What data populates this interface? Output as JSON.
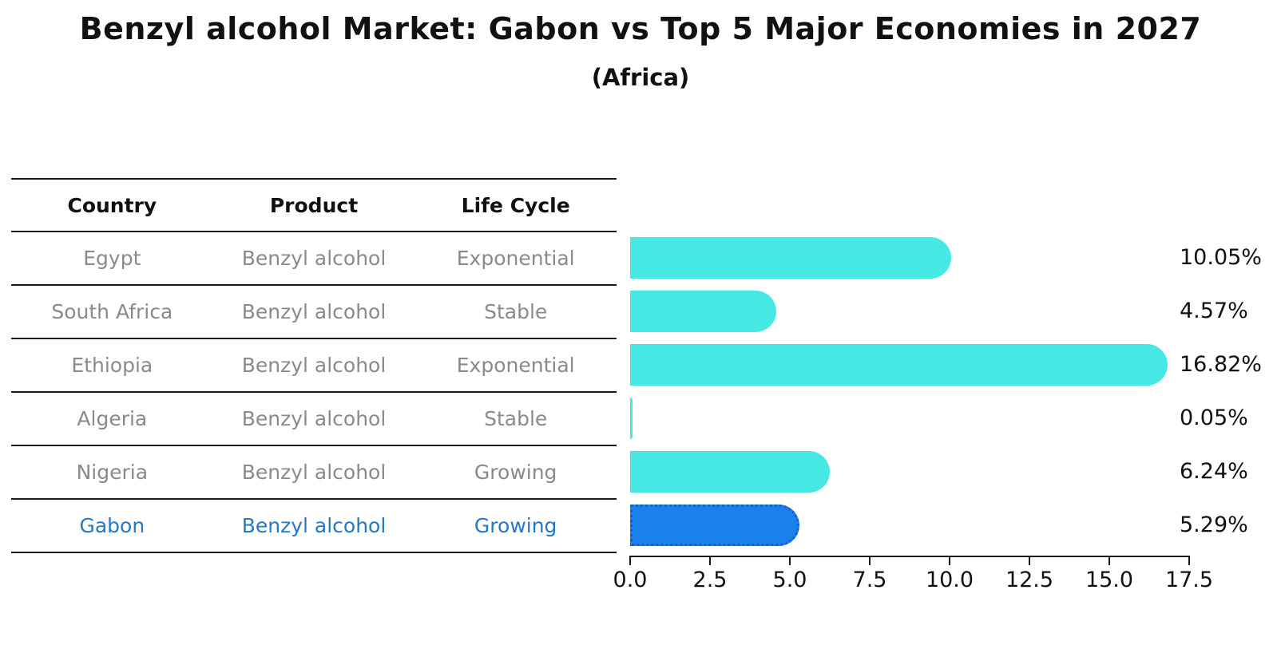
{
  "title": "Benzyl alcohol Market: Gabon vs Top 5 Major Economies in 2027",
  "subtitle": "(Africa)",
  "table": {
    "headers": [
      "Country",
      "Product",
      "Life Cycle"
    ],
    "rows": [
      {
        "country": "Egypt",
        "product": "Benzyl alcohol",
        "life_cycle": "Exponential",
        "highlight": false
      },
      {
        "country": "South Africa",
        "product": "Benzyl alcohol",
        "life_cycle": "Stable",
        "highlight": false
      },
      {
        "country": "Ethiopia",
        "product": "Benzyl alcohol",
        "life_cycle": "Exponential",
        "highlight": false
      },
      {
        "country": "Algeria",
        "product": "Benzyl alcohol",
        "life_cycle": "Stable",
        "highlight": false
      },
      {
        "country": "Nigeria",
        "product": "Benzyl alcohol",
        "life_cycle": "Growing",
        "highlight": false
      },
      {
        "country": "Gabon",
        "product": "Benzyl alcohol",
        "life_cycle": "Growing",
        "highlight": true
      }
    ]
  },
  "chart_data": {
    "type": "bar",
    "orientation": "horizontal",
    "title": "Benzyl alcohol Market: Gabon vs Top 5 Major Economies in 2027",
    "subtitle": "(Africa)",
    "categories": [
      "Egypt",
      "South Africa",
      "Ethiopia",
      "Algeria",
      "Nigeria",
      "Gabon"
    ],
    "values": [
      10.05,
      4.57,
      16.82,
      0.05,
      6.24,
      5.29
    ],
    "value_labels": [
      "10.05%",
      "4.57%",
      "16.82%",
      "0.05%",
      "6.24%",
      "5.29%"
    ],
    "xlabel": "",
    "ylabel": "",
    "xlim": [
      0,
      17.5
    ],
    "x_ticks": [
      "0.0",
      "2.5",
      "5.0",
      "7.5",
      "10.0",
      "12.5",
      "15.0",
      "17.5"
    ],
    "grid": false,
    "legend": false,
    "highlight_index": 5,
    "bar_color": "#46E8E4",
    "highlight_color": "#1A80EC",
    "highlight_border_color": "#155FCE",
    "highlight_text_color": "#2578C8"
  }
}
